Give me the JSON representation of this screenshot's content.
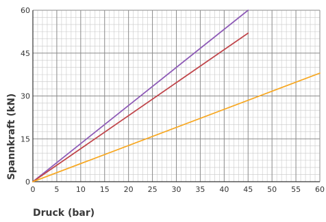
{
  "chart_data": {
    "type": "line",
    "title": "",
    "xlabel": "Druck (bar)",
    "ylabel": "Spannkraft  (kN)",
    "xlim": [
      0,
      60
    ],
    "ylim": [
      0,
      60
    ],
    "x_ticks": [
      0,
      5,
      10,
      15,
      20,
      25,
      30,
      35,
      40,
      45,
      50,
      55,
      60
    ],
    "y_ticks": [
      0,
      15,
      30,
      45,
      60
    ],
    "minor_grid_step_x": 1,
    "minor_grid_step_y": 2.5,
    "grid": true,
    "legend": "none",
    "series": [
      {
        "color": "#8e5bb7",
        "x": [
          0,
          45
        ],
        "y": [
          0,
          60
        ]
      },
      {
        "color": "#c0464b",
        "x": [
          0,
          45
        ],
        "y": [
          0,
          52
        ]
      },
      {
        "color": "#f7a823",
        "x": [
          0,
          60
        ],
        "y": [
          0,
          38
        ]
      }
    ],
    "colors": {
      "minor_grid": "#c8c8c8",
      "major_grid": "#8a8a8a",
      "axis": "#333333"
    }
  }
}
